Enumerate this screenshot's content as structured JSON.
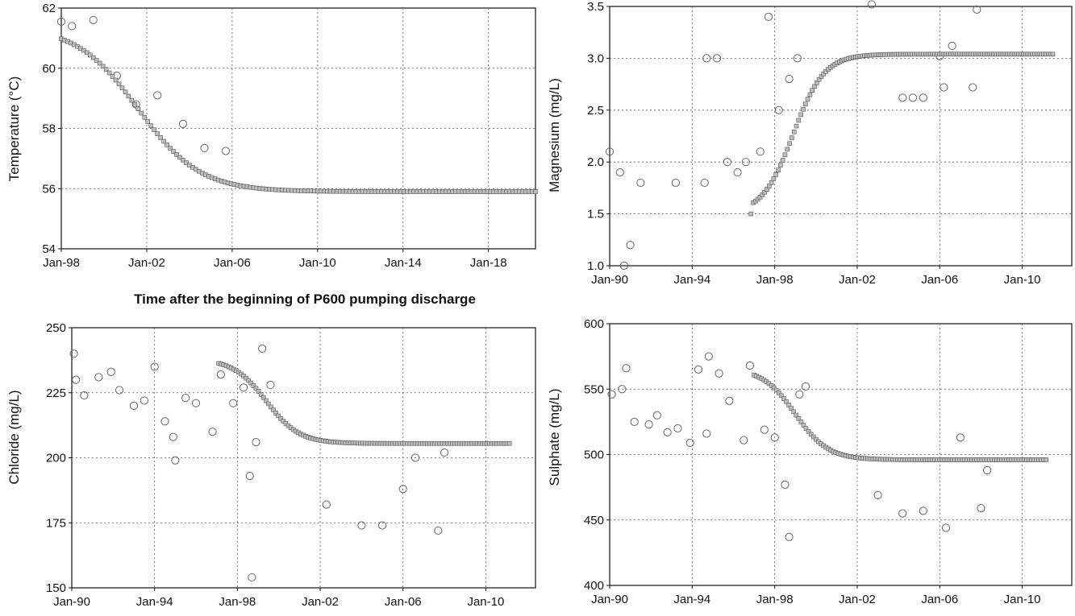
{
  "chart_data": [
    {
      "id": "temperature",
      "type": "scatter",
      "ylabel": "Temperature (°C)",
      "xlabel": "Time after the beginning of P600 pumping discharge",
      "xlim": [
        1998.0,
        2020.2
      ],
      "ylim": [
        54,
        62
      ],
      "xticks": [
        1998,
        2002,
        2006,
        2010,
        2014,
        2018
      ],
      "xtick_labels": [
        "Jan-98",
        "Jan-02",
        "Jan-06",
        "Jan-10",
        "Jan-14",
        "Jan-18"
      ],
      "yticks": [
        54,
        56,
        58,
        60,
        62
      ],
      "ytick_labels": [
        "54",
        "56",
        "58",
        "60",
        "62"
      ],
      "grid": true,
      "series": [
        {
          "kind": "observed",
          "marker": "open-circle",
          "points": [
            [
              1998.0,
              61.55
            ],
            [
              1998.5,
              61.4
            ],
            [
              1999.5,
              61.6
            ],
            [
              2000.6,
              59.75
            ],
            [
              2001.5,
              58.8
            ],
            [
              2002.5,
              59.1
            ],
            [
              2003.7,
              58.15
            ],
            [
              2004.7,
              57.35
            ],
            [
              2005.7,
              57.25
            ]
          ]
        },
        {
          "kind": "model",
          "marker": "filled-square",
          "curve": {
            "x_start": 1998.0,
            "x_end": 2020.2,
            "step": 0.15,
            "y_start": 61.4,
            "y_end": 55.9,
            "x_mid": 2001.6,
            "width": 1.45
          }
        }
      ]
    },
    {
      "id": "magnesium",
      "type": "scatter",
      "ylabel": "Magnesium (mg/L)",
      "xlim": [
        1990.0,
        2012.4
      ],
      "ylim": [
        1.0,
        3.5
      ],
      "xticks": [
        1990,
        1994,
        1998,
        2002,
        2006,
        2010
      ],
      "xtick_labels": [
        "Jan-90",
        "Jan-94",
        "Jan-98",
        "Jan-02",
        "Jan-06",
        "Jan-10"
      ],
      "yticks": [
        1.0,
        1.5,
        2.0,
        2.5,
        3.0,
        3.5
      ],
      "ytick_labels": [
        "1.0",
        "1.5",
        "2.0",
        "2.5",
        "3.0",
        "3.5"
      ],
      "grid": true,
      "series": [
        {
          "kind": "observed",
          "marker": "open-circle",
          "points": [
            [
              1990.0,
              2.1
            ],
            [
              1990.5,
              1.9
            ],
            [
              1990.7,
              1.0
            ],
            [
              1991.0,
              1.2
            ],
            [
              1991.5,
              1.8
            ],
            [
              1993.2,
              1.8
            ],
            [
              1994.6,
              1.8
            ],
            [
              1994.7,
              3.0
            ],
            [
              1995.2,
              3.0
            ],
            [
              1995.7,
              2.0
            ],
            [
              1996.2,
              1.9
            ],
            [
              1996.6,
              2.0
            ],
            [
              1997.3,
              2.1
            ],
            [
              1997.7,
              3.4
            ],
            [
              1998.2,
              2.5
            ],
            [
              1998.7,
              2.8
            ],
            [
              1999.1,
              3.0
            ],
            [
              2002.7,
              3.52
            ],
            [
              2004.2,
              2.62
            ],
            [
              2004.7,
              2.62
            ],
            [
              2005.2,
              2.62
            ],
            [
              2006.0,
              3.02
            ],
            [
              2006.2,
              2.72
            ],
            [
              2006.6,
              3.12
            ],
            [
              2007.6,
              2.72
            ],
            [
              2007.8,
              3.47
            ]
          ]
        },
        {
          "kind": "model",
          "marker": "filled-square",
          "curve": {
            "x_start": 1996.85,
            "x_end": 2011.5,
            "step": 0.11,
            "y_start": 1.5,
            "y_end": 3.04,
            "x_mid": 1998.9,
            "width": 0.75,
            "y_first": 1.5
          }
        }
      ]
    },
    {
      "id": "chloride",
      "type": "scatter",
      "ylabel": "Chloride (mg/L)",
      "xlim": [
        1990.0,
        2012.4
      ],
      "ylim": [
        150,
        250
      ],
      "xticks": [
        1990,
        1994,
        1998,
        2002,
        2006,
        2010
      ],
      "xtick_labels": [
        "Jan-90",
        "Jan-94",
        "Jan-98",
        "Jan-02",
        "Jan-06",
        "Jan-10"
      ],
      "yticks": [
        150,
        175,
        200,
        225,
        250
      ],
      "ytick_labels": [
        "150",
        "175",
        "200",
        "225",
        "250"
      ],
      "grid": true,
      "series": [
        {
          "kind": "observed",
          "marker": "open-circle",
          "points": [
            [
              1990.1,
              240
            ],
            [
              1990.2,
              230
            ],
            [
              1990.6,
              224
            ],
            [
              1991.3,
              231
            ],
            [
              1991.9,
              233
            ],
            [
              1992.3,
              226
            ],
            [
              1993.0,
              220
            ],
            [
              1993.5,
              222
            ],
            [
              1994.0,
              235
            ],
            [
              1994.5,
              214
            ],
            [
              1994.9,
              208
            ],
            [
              1995.0,
              199
            ],
            [
              1995.5,
              223
            ],
            [
              1996.0,
              221
            ],
            [
              1996.8,
              210
            ],
            [
              1997.2,
              232
            ],
            [
              1997.8,
              221
            ],
            [
              1998.3,
              227
            ],
            [
              1998.6,
              193
            ],
            [
              1998.7,
              154
            ],
            [
              1998.9,
              206
            ],
            [
              1999.2,
              242
            ],
            [
              1999.6,
              228
            ],
            [
              2002.3,
              182
            ],
            [
              2004.0,
              174
            ],
            [
              2005.0,
              174
            ],
            [
              2006.0,
              188
            ],
            [
              2006.6,
              200
            ],
            [
              2007.7,
              172
            ],
            [
              2008.0,
              202
            ]
          ]
        },
        {
          "kind": "model",
          "marker": "filled-square",
          "curve": {
            "x_start": 1997.1,
            "x_end": 2011.1,
            "step": 0.12,
            "y_start": 238,
            "y_end": 205.5,
            "x_mid": 1999.4,
            "width": 0.8
          }
        }
      ]
    },
    {
      "id": "sulphate",
      "type": "scatter",
      "ylabel": "Sulphate (mg/L)",
      "xlim": [
        1990.0,
        2012.4
      ],
      "ylim": [
        400,
        600
      ],
      "xticks": [
        1990,
        1994,
        1998,
        2002,
        2006,
        2010
      ],
      "xtick_labels": [
        "Jan-90",
        "Jan-94",
        "Jan-98",
        "Jan-02",
        "Jan-06",
        "Jan-10"
      ],
      "yticks": [
        400,
        450,
        500,
        550,
        600
      ],
      "ytick_labels": [
        "400",
        "450",
        "500",
        "550",
        "600"
      ],
      "grid": true,
      "series": [
        {
          "kind": "observed",
          "marker": "open-circle",
          "points": [
            [
              1990.1,
              546
            ],
            [
              1990.6,
              550
            ],
            [
              1990.8,
              566
            ],
            [
              1991.2,
              525
            ],
            [
              1991.9,
              523
            ],
            [
              1992.3,
              530
            ],
            [
              1992.8,
              517
            ],
            [
              1993.3,
              520
            ],
            [
              1993.9,
              509
            ],
            [
              1994.3,
              565
            ],
            [
              1994.7,
              516
            ],
            [
              1994.8,
              575
            ],
            [
              1995.3,
              562
            ],
            [
              1995.8,
              541
            ],
            [
              1996.5,
              511
            ],
            [
              1996.8,
              568
            ],
            [
              1997.5,
              519
            ],
            [
              1998.0,
              513
            ],
            [
              1998.5,
              477
            ],
            [
              1998.7,
              437
            ],
            [
              1999.2,
              546
            ],
            [
              1999.5,
              552
            ],
            [
              2003.0,
              469
            ],
            [
              2004.2,
              455
            ],
            [
              2005.2,
              457
            ],
            [
              2006.3,
              444
            ],
            [
              2007.0,
              513
            ],
            [
              2008.0,
              459
            ],
            [
              2008.3,
              488
            ]
          ]
        },
        {
          "kind": "model",
          "marker": "filled-square",
          "curve": {
            "x_start": 1997.0,
            "x_end": 2011.2,
            "step": 0.12,
            "y_start": 566,
            "y_end": 496,
            "x_mid": 1999.0,
            "width": 0.8
          }
        }
      ]
    }
  ]
}
